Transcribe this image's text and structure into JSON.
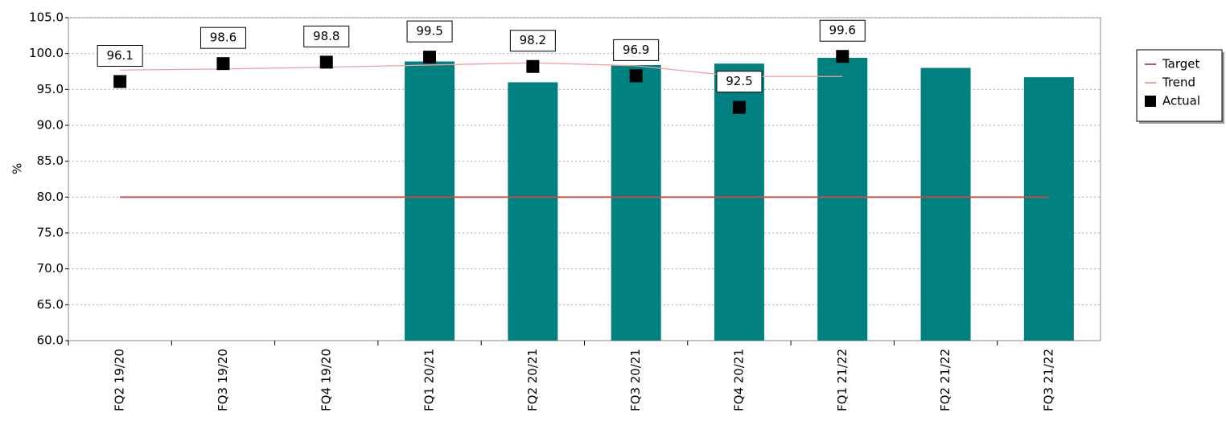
{
  "chart_data": {
    "type": "bar",
    "y_label": "%",
    "categories": [
      "FQ2 19/20",
      "FQ3 19/20",
      "FQ4 19/20",
      "FQ1 20/21",
      "FQ2 20/21",
      "FQ3 20/21",
      "FQ4 20/21",
      "FQ1 21/22",
      "FQ2 21/22",
      "FQ3 21/22"
    ],
    "series": [
      {
        "type": "bar",
        "color": "#008080",
        "values": [
          null,
          null,
          null,
          98.9,
          96.0,
          98.4,
          98.6,
          99.4,
          98.0,
          96.7
        ]
      },
      {
        "name": "Target",
        "type": "line",
        "color": "#c0504d",
        "values": [
          80,
          80,
          80,
          80,
          80,
          80,
          80,
          80,
          80,
          80
        ]
      },
      {
        "name": "Trend",
        "type": "line",
        "color": "#f4a0a0",
        "values": [
          97.7,
          97.85,
          98.1,
          98.4,
          98.7,
          98.3,
          96.8,
          96.8,
          null,
          null
        ]
      },
      {
        "name": "Actual",
        "type": "scatter",
        "color": "#000000",
        "values": [
          96.1,
          98.6,
          98.8,
          99.5,
          98.2,
          96.9,
          92.5,
          99.6,
          null,
          null
        ]
      }
    ],
    "ylim": [
      60,
      105
    ],
    "yticks": [
      {
        "value": 60,
        "label": "60.0"
      },
      {
        "value": 65,
        "label": "65.0"
      },
      {
        "value": 70,
        "label": "70.0"
      },
      {
        "value": 75,
        "label": "75.0"
      },
      {
        "value": 80,
        "label": "80.0"
      },
      {
        "value": 85,
        "label": "85.0"
      },
      {
        "value": 90,
        "label": "90.0"
      },
      {
        "value": 95,
        "label": "95.0"
      },
      {
        "value": 100,
        "label": "100.0"
      },
      {
        "value": 105,
        "label": "105.0"
      }
    ],
    "grid": true,
    "legend": "right"
  }
}
